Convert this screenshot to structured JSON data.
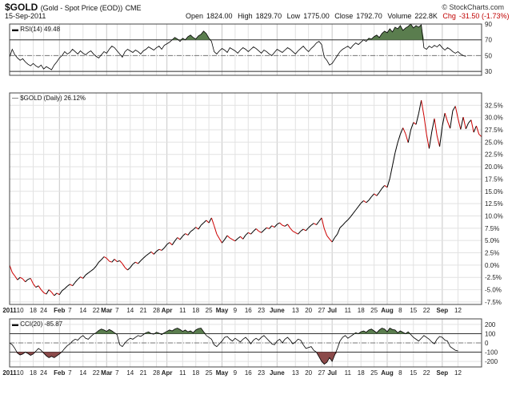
{
  "header": {
    "symbol": "$GOLD",
    "subtitle": "(Gold - Spot Price (EOD))",
    "exchange": "CME",
    "date": "15-Sep-2011",
    "credit": "© StockCharts.com",
    "open_label": "Open",
    "open": "1824.00",
    "high_label": "High",
    "high": "1829.70",
    "low_label": "Low",
    "low": "1775.00",
    "close_label": "Close",
    "close": "1792.70",
    "volume_label": "Volume",
    "volume": "222.8K",
    "chg_label": "Chg",
    "chg": "-31.50 (-1.73%)",
    "chg_arrow": "▼"
  },
  "colors": {
    "price_up": "#000000",
    "price_down": "#cc0000",
    "overbought_fill": "#5a7d4e",
    "oversold_fill": "#8b4a4a",
    "grid": "#e2e2e2",
    "frame": "#444444"
  },
  "x_axis": {
    "labels": [
      {
        "text": "2011",
        "bold": true,
        "i": 0
      },
      {
        "text": "10",
        "i": 4
      },
      {
        "text": "18",
        "i": 9
      },
      {
        "text": "24",
        "i": 13
      },
      {
        "text": "Feb",
        "bold": true,
        "i": 19
      },
      {
        "text": "7",
        "i": 23
      },
      {
        "text": "14",
        "i": 28
      },
      {
        "text": "22",
        "i": 33
      },
      {
        "text": "Mar",
        "bold": true,
        "i": 37
      },
      {
        "text": "7",
        "i": 41
      },
      {
        "text": "14",
        "i": 46
      },
      {
        "text": "21",
        "i": 51
      },
      {
        "text": "28",
        "i": 56
      },
      {
        "text": "Apr",
        "bold": true,
        "i": 60
      },
      {
        "text": "11",
        "i": 66
      },
      {
        "text": "18",
        "i": 71
      },
      {
        "text": "25",
        "i": 76
      },
      {
        "text": "May",
        "bold": true,
        "i": 81
      },
      {
        "text": "9",
        "i": 86
      },
      {
        "text": "16",
        "i": 91
      },
      {
        "text": "23",
        "i": 96
      },
      {
        "text": "June",
        "bold": true,
        "i": 102
      },
      {
        "text": "13",
        "i": 109
      },
      {
        "text": "20",
        "i": 114
      },
      {
        "text": "27",
        "i": 119
      },
      {
        "text": "Jul",
        "bold": true,
        "i": 123
      },
      {
        "text": "11",
        "i": 129
      },
      {
        "text": "18",
        "i": 134
      },
      {
        "text": "25",
        "i": 139
      },
      {
        "text": "Aug",
        "bold": true,
        "i": 144
      },
      {
        "text": "8",
        "i": 149
      },
      {
        "text": "15",
        "i": 154
      },
      {
        "text": "22",
        "i": 159
      },
      {
        "text": "Sep",
        "bold": true,
        "i": 165
      },
      {
        "text": "12",
        "i": 171
      }
    ]
  },
  "chart_data": [
    {
      "type": "line",
      "title": "RSI(14) 49.48",
      "indicator": "RSI",
      "period": 14,
      "last_value": 49.48,
      "ylim": [
        25,
        90
      ],
      "yticks": [
        30,
        50,
        70,
        90
      ],
      "reference_lines": [
        30,
        50,
        70
      ],
      "overbought": 70,
      "oversold": 30,
      "series": [
        {
          "values": [
            48,
            58,
            51,
            47,
            44,
            46,
            42,
            39,
            37,
            40,
            37,
            35,
            38,
            33,
            36,
            34,
            32,
            38,
            42,
            47,
            50,
            55,
            52,
            54,
            58,
            55,
            52,
            56,
            53,
            51,
            54,
            56,
            52,
            49,
            47,
            51,
            55,
            53,
            58,
            62,
            60,
            56,
            52,
            48,
            55,
            58,
            56,
            54,
            57,
            55,
            52,
            56,
            58,
            61,
            59,
            57,
            60,
            62,
            58,
            63,
            65,
            67,
            70,
            73,
            71,
            68,
            72,
            70,
            74,
            76,
            73,
            71,
            75,
            77,
            81,
            78,
            72,
            68,
            55,
            52,
            56,
            59,
            57,
            54,
            60,
            58,
            56,
            53,
            57,
            60,
            58,
            55,
            58,
            61,
            59,
            56,
            53,
            57,
            55,
            52,
            50,
            54,
            58,
            56,
            54,
            57,
            60,
            58,
            55,
            52,
            56,
            59,
            62,
            58,
            55,
            59,
            62,
            66,
            68,
            64,
            48,
            44,
            38,
            40,
            45,
            50,
            55,
            58,
            60,
            62,
            59,
            63,
            66,
            64,
            67,
            70,
            68,
            72,
            71,
            74,
            76,
            73,
            78,
            81,
            79,
            84,
            80,
            86,
            84,
            88,
            82,
            85,
            87,
            90,
            85,
            88,
            86,
            89,
            60,
            58,
            62,
            60,
            63,
            61,
            64,
            60,
            57,
            60,
            58,
            55,
            53,
            55,
            52,
            50,
            49
          ]
        }
      ]
    },
    {
      "type": "line",
      "title": "$GOLD (Daily) 26.12%",
      "units": "percent change",
      "last_value": 26.12,
      "ylim": [
        -8,
        35
      ],
      "yticks": [
        -7.5,
        -5.0,
        -2.5,
        0.0,
        2.5,
        5.0,
        7.5,
        10.0,
        12.5,
        15.0,
        17.5,
        20.0,
        22.5,
        25.0,
        27.5,
        30.0,
        32.5
      ],
      "ytick_labels": [
        "-7.5%",
        "-5.0%",
        "-2.5%",
        "0.0%",
        "2.5%",
        "5.0%",
        "7.5%",
        "10.0%",
        "12.5%",
        "15.0%",
        "17.5%",
        "20.0%",
        "22.5%",
        "25.0%",
        "27.5%",
        "30.0%",
        "32.5%"
      ],
      "series": [
        {
          "values": [
            0.0,
            -1.5,
            -2.2,
            -3.0,
            -2.5,
            -2.8,
            -3.4,
            -2.9,
            -2.7,
            -3.8,
            -4.5,
            -4.2,
            -5.0,
            -5.6,
            -5.9,
            -5.0,
            -5.5,
            -6.2,
            -5.7,
            -6.0,
            -5.2,
            -4.8,
            -4.3,
            -3.9,
            -4.2,
            -3.5,
            -2.9,
            -2.4,
            -2.7,
            -2.0,
            -1.6,
            -1.2,
            -0.8,
            -0.2,
            0.6,
            1.1,
            1.7,
            1.4,
            0.8,
            0.6,
            1.2,
            0.7,
            0.9,
            0.3,
            -0.5,
            -1.0,
            -0.5,
            0.2,
            0.6,
            0.3,
            0.9,
            1.4,
            1.9,
            2.3,
            2.7,
            2.2,
            2.8,
            3.2,
            3.0,
            3.5,
            4.2,
            4.6,
            4.1,
            4.9,
            5.6,
            5.2,
            5.9,
            6.4,
            6.1,
            6.8,
            7.2,
            7.7,
            7.3,
            8.1,
            8.6,
            9.1,
            8.6,
            9.6,
            8.0,
            6.3,
            5.4,
            4.5,
            5.2,
            6.0,
            5.5,
            5.2,
            4.9,
            5.4,
            5.8,
            5.3,
            6.1,
            6.6,
            6.3,
            6.9,
            7.4,
            6.9,
            6.6,
            7.1,
            7.6,
            7.4,
            8.0,
            7.7,
            8.3,
            8.6,
            8.1,
            7.9,
            8.3,
            7.5,
            6.9,
            6.6,
            6.3,
            6.9,
            7.3,
            7.0,
            7.6,
            8.1,
            8.5,
            8.2,
            8.9,
            9.6,
            7.4,
            6.0,
            5.3,
            4.7,
            5.6,
            6.3,
            7.6,
            8.1,
            8.7,
            9.2,
            9.8,
            10.5,
            11.2,
            11.9,
            12.6,
            13.1,
            12.7,
            13.2,
            13.9,
            14.5,
            14.1,
            14.8,
            15.6,
            16.2,
            15.8,
            17.6,
            20.2,
            22.8,
            24.9,
            26.6,
            27.9,
            26.7,
            24.9,
            27.5,
            29.0,
            28.6,
            30.8,
            33.5,
            30.4,
            26.6,
            23.7,
            27.1,
            29.8,
            26.3,
            24.1,
            28.2,
            30.9,
            29.2,
            27.8,
            31.4,
            32.3,
            29.8,
            27.6,
            30.1,
            27.7,
            28.9,
            29.5,
            27.0,
            28.3,
            26.6,
            26.1
          ]
        }
      ]
    },
    {
      "type": "line",
      "title": "CCI(20) -85.87",
      "indicator": "CCI",
      "period": 20,
      "last_value": -85.87,
      "ylim": [
        -260,
        260
      ],
      "yticks": [
        -200,
        -100,
        0,
        100,
        200
      ],
      "reference_lines": [
        -100,
        0,
        100
      ],
      "series": [
        {
          "values": [
            0,
            -20,
            -60,
            -110,
            -130,
            -120,
            -100,
            -115,
            -135,
            -120,
            -90,
            -60,
            -80,
            -110,
            -140,
            -160,
            -145,
            -160,
            -140,
            -120,
            -95,
            -60,
            -30,
            -10,
            20,
            40,
            30,
            60,
            80,
            50,
            40,
            70,
            95,
            110,
            135,
            150,
            140,
            125,
            145,
            130,
            110,
            90,
            -20,
            -40,
            0,
            30,
            50,
            40,
            60,
            80,
            70,
            90,
            110,
            120,
            100,
            95,
            115,
            105,
            90,
            110,
            125,
            140,
            130,
            150,
            160,
            145,
            125,
            140,
            120,
            130,
            110,
            140,
            155,
            160,
            120,
            80,
            60,
            40,
            -20,
            -40,
            -10,
            20,
            60,
            70,
            40,
            20,
            50,
            30,
            10,
            40,
            60,
            30,
            -10,
            30,
            50,
            30,
            60,
            80,
            50,
            20,
            -10,
            -20,
            20,
            40,
            0,
            40,
            60,
            30,
            -10,
            10,
            40,
            30,
            -20,
            -60,
            -50,
            -40,
            -80,
            -100,
            -150,
            -200,
            -230,
            -210,
            -160,
            -200,
            -130,
            -60,
            20,
            60,
            80,
            50,
            70,
            90,
            110,
            100,
            120,
            130,
            115,
            140,
            150,
            130,
            110,
            140,
            160,
            150,
            120,
            160,
            145,
            140,
            110,
            130,
            115,
            100,
            120,
            90,
            60,
            40,
            20,
            50,
            80,
            60,
            40,
            10,
            -10,
            40,
            70,
            60,
            30,
            20,
            -40,
            -60,
            -80,
            -86
          ]
        }
      ]
    }
  ]
}
